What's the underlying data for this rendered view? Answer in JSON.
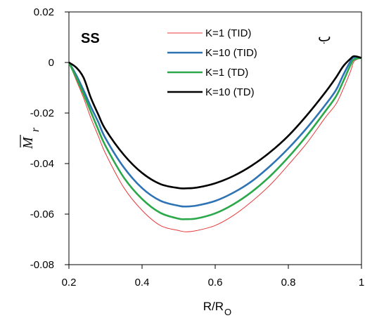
{
  "chart_data": {
    "type": "line",
    "panel_label": "SS",
    "corner_mark": "ب",
    "xlabel_main": "R/R",
    "xlabel_sub": "O",
    "ylabel_main": "M",
    "ylabel_sub": "r",
    "xlim": [
      0.2,
      1.0
    ],
    "ylim": [
      -0.08,
      0.02
    ],
    "x_ticks": [
      0.2,
      0.4,
      0.6,
      0.8,
      1.0
    ],
    "x_tick_labels": [
      "0.2",
      "0.4",
      "0.6",
      "0.8",
      "1"
    ],
    "y_ticks": [
      0.02,
      0.0,
      -0.02,
      -0.04,
      -0.06,
      -0.08
    ],
    "y_tick_labels": [
      "0.02",
      "0",
      "-0.02",
      "-0.04",
      "-0.06",
      "-0.08"
    ],
    "grid": false,
    "legend_position": "top-center",
    "x": [
      0.2,
      0.22,
      0.24,
      0.26,
      0.28,
      0.3,
      0.35,
      0.4,
      0.45,
      0.5,
      0.52,
      0.55,
      0.6,
      0.65,
      0.7,
      0.75,
      0.8,
      0.85,
      0.9,
      0.93,
      0.95,
      0.97,
      0.98,
      1.0
    ],
    "series": [
      {
        "name": "K=1 (TID)",
        "color": "#e8393a",
        "width": 1,
        "values": [
          0.0,
          -0.007,
          -0.014,
          -0.022,
          -0.029,
          -0.036,
          -0.0495,
          -0.0585,
          -0.0645,
          -0.0665,
          -0.067,
          -0.0665,
          -0.0645,
          -0.0605,
          -0.055,
          -0.0485,
          -0.0405,
          -0.032,
          -0.022,
          -0.0165,
          -0.0105,
          -0.0035,
          0.0005,
          0.0018
        ]
      },
      {
        "name": "K=10 (TID)",
        "color": "#2e74b5",
        "width": 2.6,
        "values": [
          0.0,
          -0.005,
          -0.011,
          -0.0175,
          -0.0235,
          -0.03,
          -0.0415,
          -0.0497,
          -0.0547,
          -0.0567,
          -0.057,
          -0.0566,
          -0.0548,
          -0.0515,
          -0.047,
          -0.041,
          -0.034,
          -0.026,
          -0.017,
          -0.011,
          -0.005,
          0.0005,
          0.002,
          0.0018
        ]
      },
      {
        "name": "K=1 (TD)",
        "color": "#2aa84a",
        "width": 2.6,
        "values": [
          0.0,
          -0.006,
          -0.0125,
          -0.0195,
          -0.0265,
          -0.033,
          -0.0455,
          -0.054,
          -0.0595,
          -0.0618,
          -0.062,
          -0.0617,
          -0.0597,
          -0.0561,
          -0.0512,
          -0.045,
          -0.0375,
          -0.029,
          -0.0195,
          -0.0135,
          -0.0075,
          -0.001,
          0.0012,
          0.0018
        ]
      },
      {
        "name": "K=10 (TD)",
        "color": "#000000",
        "width": 2.6,
        "values": [
          0.0,
          -0.002,
          -0.006,
          -0.014,
          -0.0205,
          -0.0265,
          -0.0365,
          -0.0437,
          -0.0481,
          -0.0497,
          -0.0498,
          -0.0495,
          -0.0478,
          -0.0449,
          -0.0408,
          -0.0355,
          -0.029,
          -0.021,
          -0.012,
          -0.006,
          -0.0015,
          0.0015,
          0.0025,
          0.0018
        ]
      }
    ]
  }
}
